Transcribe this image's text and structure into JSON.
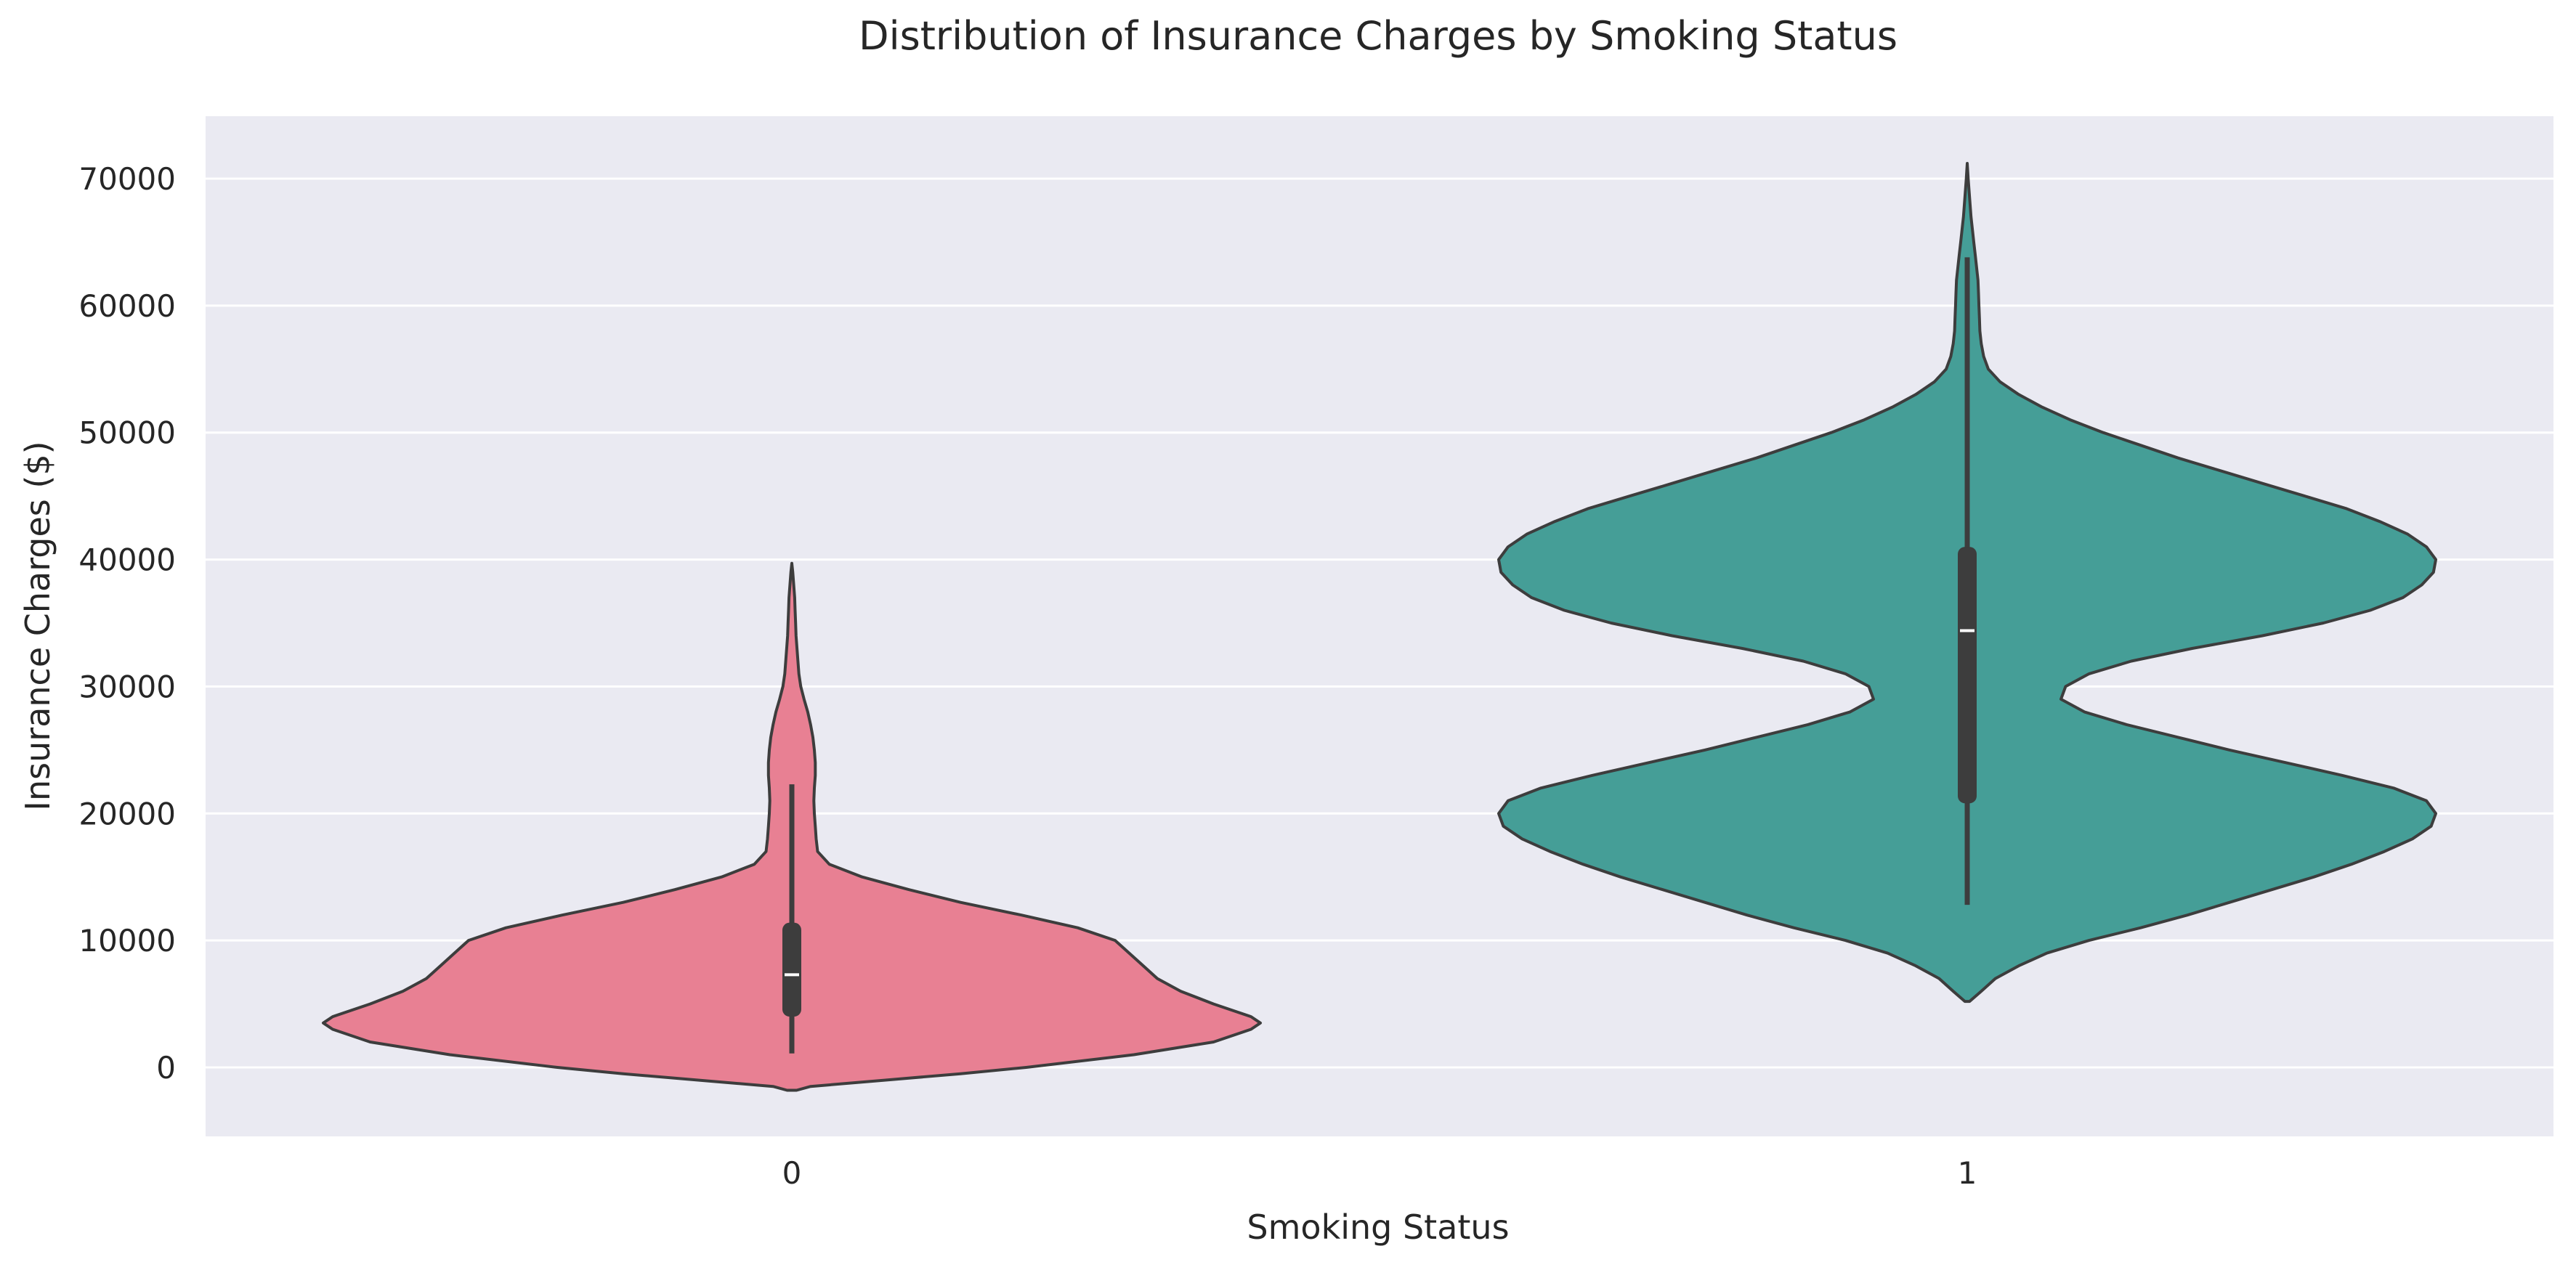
{
  "chart_data": {
    "type": "violin",
    "title": "Distribution of Insurance Charges by Smoking Status",
    "xlabel": "Smoking Status",
    "ylabel": "Insurance Charges ($)",
    "ylim": [
      -5500,
      75500
    ],
    "yticks": [
      0,
      10000,
      20000,
      30000,
      40000,
      50000,
      60000,
      70000
    ],
    "categories": [
      "0",
      "1"
    ],
    "grid": true,
    "legend": "none",
    "colors": {
      "background": "#eaeaf2",
      "grid": "#ffffff",
      "outline": "#3d3d3d",
      "box": "#3d3d3d",
      "median": "#ffffff"
    },
    "violins": [
      {
        "category": "0",
        "color": "#e88093",
        "min": 1100,
        "q1": 4000,
        "median": 7300,
        "q3": 11400,
        "whisker_high": 22300,
        "profile": [
          [
            -1800,
            0.01
          ],
          [
            -1500,
            0.04
          ],
          [
            -1000,
            0.2
          ],
          [
            -500,
            0.36
          ],
          [
            0,
            0.5
          ],
          [
            1000,
            0.73
          ],
          [
            2000,
            0.9
          ],
          [
            3000,
            0.98
          ],
          [
            3500,
            1.0
          ],
          [
            4000,
            0.98
          ],
          [
            5000,
            0.9
          ],
          [
            6000,
            0.83
          ],
          [
            7000,
            0.78
          ],
          [
            8000,
            0.75
          ],
          [
            9000,
            0.72
          ],
          [
            10000,
            0.69
          ],
          [
            11000,
            0.61
          ],
          [
            12000,
            0.49
          ],
          [
            13000,
            0.36
          ],
          [
            14000,
            0.25
          ],
          [
            15000,
            0.15
          ],
          [
            16000,
            0.08
          ],
          [
            17000,
            0.055
          ],
          [
            18000,
            0.052
          ],
          [
            19000,
            0.05
          ],
          [
            20000,
            0.048
          ],
          [
            21000,
            0.047
          ],
          [
            22000,
            0.048
          ],
          [
            23000,
            0.05
          ],
          [
            24000,
            0.05
          ],
          [
            25000,
            0.048
          ],
          [
            26000,
            0.045
          ],
          [
            27000,
            0.04
          ],
          [
            28000,
            0.034
          ],
          [
            29000,
            0.026
          ],
          [
            30000,
            0.019
          ],
          [
            31000,
            0.015
          ],
          [
            32000,
            0.013
          ],
          [
            33000,
            0.011
          ],
          [
            34000,
            0.009
          ],
          [
            35000,
            0.008
          ],
          [
            36000,
            0.007
          ],
          [
            37000,
            0.006
          ],
          [
            38000,
            0.004
          ],
          [
            39000,
            0.002
          ],
          [
            39700,
            0.0
          ]
        ]
      },
      {
        "category": "1",
        "color": "#459e97",
        "min": 12800,
        "q1": 20800,
        "median": 34400,
        "q3": 41000,
        "whisker_high": 63800,
        "profile": [
          [
            5200,
            0.005
          ],
          [
            6000,
            0.03
          ],
          [
            7000,
            0.06
          ],
          [
            8000,
            0.11
          ],
          [
            9000,
            0.17
          ],
          [
            10000,
            0.26
          ],
          [
            11000,
            0.37
          ],
          [
            12000,
            0.47
          ],
          [
            13000,
            0.56
          ],
          [
            14000,
            0.65
          ],
          [
            15000,
            0.74
          ],
          [
            16000,
            0.82
          ],
          [
            17000,
            0.89
          ],
          [
            18000,
            0.95
          ],
          [
            19000,
            0.99
          ],
          [
            20000,
            1.0
          ],
          [
            21000,
            0.98
          ],
          [
            22000,
            0.91
          ],
          [
            23000,
            0.8
          ],
          [
            24000,
            0.68
          ],
          [
            25000,
            0.56
          ],
          [
            26000,
            0.45
          ],
          [
            27000,
            0.34
          ],
          [
            28000,
            0.25
          ],
          [
            29000,
            0.2
          ],
          [
            30000,
            0.21
          ],
          [
            31000,
            0.26
          ],
          [
            32000,
            0.35
          ],
          [
            33000,
            0.48
          ],
          [
            34000,
            0.63
          ],
          [
            35000,
            0.76
          ],
          [
            36000,
            0.86
          ],
          [
            37000,
            0.93
          ],
          [
            38000,
            0.97
          ],
          [
            39000,
            0.995
          ],
          [
            40000,
            1.0
          ],
          [
            41000,
            0.98
          ],
          [
            42000,
            0.94
          ],
          [
            43000,
            0.88
          ],
          [
            44000,
            0.81
          ],
          [
            45000,
            0.72
          ],
          [
            46000,
            0.63
          ],
          [
            47000,
            0.54
          ],
          [
            48000,
            0.45
          ],
          [
            49000,
            0.37
          ],
          [
            50000,
            0.29
          ],
          [
            51000,
            0.22
          ],
          [
            52000,
            0.16
          ],
          [
            53000,
            0.11
          ],
          [
            54000,
            0.07
          ],
          [
            55000,
            0.045
          ],
          [
            56000,
            0.035
          ],
          [
            57000,
            0.03
          ],
          [
            58000,
            0.027
          ],
          [
            59000,
            0.026
          ],
          [
            60000,
            0.025
          ],
          [
            61000,
            0.024
          ],
          [
            62000,
            0.023
          ],
          [
            63000,
            0.02
          ],
          [
            64000,
            0.017
          ],
          [
            65000,
            0.014
          ],
          [
            66000,
            0.011
          ],
          [
            67000,
            0.008
          ],
          [
            68000,
            0.006
          ],
          [
            69000,
            0.004
          ],
          [
            70000,
            0.002
          ],
          [
            71200,
            0.0
          ]
        ]
      }
    ]
  }
}
